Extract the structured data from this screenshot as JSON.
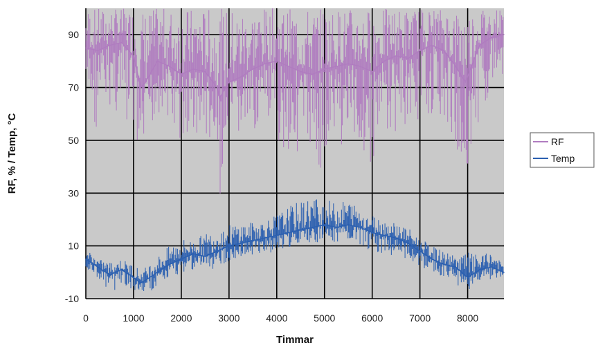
{
  "chart_data": {
    "type": "line",
    "xlabel": "Timmar",
    "ylabel": "RF, % / Temp, °C",
    "xlim": [
      0,
      8760
    ],
    "ylim": [
      -10,
      100
    ],
    "x_ticks": [
      "0",
      "1000",
      "2000",
      "3000",
      "4000",
      "5000",
      "6000",
      "7000",
      "8000"
    ],
    "y_ticks": [
      "-10",
      "10",
      "30",
      "50",
      "70",
      "90"
    ],
    "grid": true,
    "legend_position": "right",
    "colors": {
      "plot_bg": "#c9c9c9",
      "grid": "#000000",
      "rf": "#b07cc0",
      "temp": "#2a5fb0"
    },
    "series": [
      {
        "name": "RF",
        "color": "#b07cc0",
        "x": [
          0,
          250,
          500,
          750,
          1000,
          1150,
          1250,
          1500,
          1750,
          2000,
          2250,
          2500,
          2750,
          2800,
          3000,
          3250,
          3500,
          3750,
          4000,
          4250,
          4500,
          4750,
          5000,
          5250,
          5500,
          5750,
          6000,
          6250,
          6500,
          6750,
          7000,
          7250,
          7500,
          7750,
          7950,
          8250,
          8500,
          8760
        ],
        "y": [
          85,
          84,
          86,
          87,
          82,
          70,
          72,
          80,
          78,
          75,
          77,
          76,
          70,
          66,
          72,
          74,
          77,
          79,
          80,
          78,
          76,
          75,
          77,
          78,
          79,
          78,
          76,
          80,
          82,
          81,
          84,
          86,
          84,
          78,
          72,
          86,
          89,
          90
        ],
        "min": [
          60,
          52,
          62,
          55,
          50,
          28,
          46,
          60,
          58,
          45,
          52,
          50,
          30,
          26,
          48,
          50,
          53,
          55,
          48,
          44,
          46,
          45,
          35,
          45,
          50,
          43,
          40,
          50,
          52,
          55,
          58,
          60,
          55,
          48,
          33,
          58,
          70,
          75
        ],
        "max": [
          100,
          100,
          100,
          100,
          100,
          100,
          100,
          100,
          100,
          100,
          100,
          100,
          100,
          100,
          100,
          100,
          100,
          100,
          100,
          100,
          100,
          100,
          100,
          100,
          100,
          100,
          100,
          100,
          100,
          100,
          100,
          100,
          100,
          100,
          100,
          100,
          100,
          100
        ]
      },
      {
        "name": "Temp",
        "color": "#2a5fb0",
        "x": [
          0,
          250,
          500,
          750,
          1000,
          1150,
          1250,
          1500,
          1750,
          2000,
          2250,
          2500,
          2750,
          3000,
          3250,
          3500,
          3750,
          4000,
          4250,
          4500,
          4750,
          5000,
          5250,
          5500,
          5750,
          6000,
          6250,
          6500,
          6750,
          7000,
          7250,
          7500,
          7750,
          8000,
          8250,
          8500,
          8760
        ],
        "y": [
          5,
          2,
          -1,
          1,
          -2,
          -4,
          -3,
          0,
          3,
          5,
          7,
          6,
          8,
          10,
          11,
          12,
          13,
          14,
          15,
          16,
          17,
          18,
          17,
          18,
          17,
          15,
          14,
          13,
          11,
          8,
          5,
          3,
          2,
          -2,
          1,
          2,
          0
        ],
        "min": [
          1,
          -2,
          -9,
          -4,
          -7,
          -9,
          -8,
          -6,
          -3,
          0,
          1,
          0,
          2,
          4,
          5,
          6,
          7,
          8,
          9,
          10,
          11,
          11,
          10,
          11,
          10,
          8,
          7,
          6,
          5,
          2,
          0,
          -2,
          -4,
          -9,
          -3,
          -3,
          -2
        ],
        "max": [
          9,
          5,
          4,
          5,
          3,
          1,
          2,
          6,
          10,
          13,
          12,
          15,
          17,
          18,
          19,
          19,
          20,
          22,
          25,
          27,
          29,
          28,
          26,
          28,
          24,
          22,
          20,
          19,
          17,
          13,
          10,
          8,
          6,
          8,
          6,
          8,
          3
        ]
      }
    ]
  }
}
